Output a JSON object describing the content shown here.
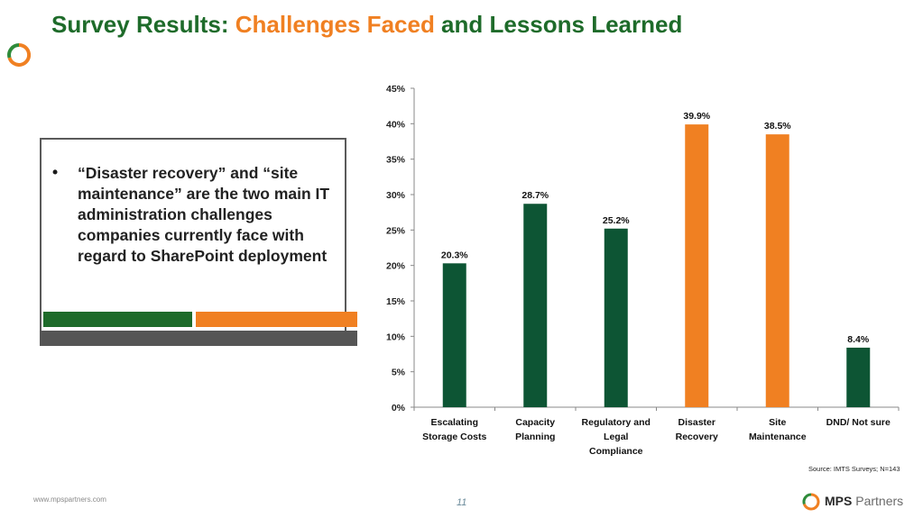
{
  "title": {
    "part1": "Survey Results: ",
    "part2": "Challenges Faced",
    "part3": " and Lessons Learned"
  },
  "bullet": {
    "marker": "•",
    "text": "“Disaster recovery” and “site maintenance” are the two main IT administration challenges companies currently face with regard to SharePoint deployment"
  },
  "chart_data": {
    "type": "bar",
    "categories": [
      [
        "Escalating",
        "Storage Costs"
      ],
      [
        "Capacity",
        "Planning"
      ],
      [
        "Regulatory and",
        "Legal",
        "Compliance"
      ],
      [
        "Disaster",
        "Recovery"
      ],
      [
        "Site",
        "Maintenance"
      ],
      [
        "DND/ Not sure"
      ]
    ],
    "values": [
      20.3,
      28.7,
      25.2,
      39.9,
      38.5,
      8.4
    ],
    "value_labels": [
      "20.3%",
      "28.7%",
      "25.2%",
      "39.9%",
      "38.5%",
      "8.4%"
    ],
    "bar_colors": [
      "#0d5534",
      "#0d5534",
      "#0d5534",
      "#f08022",
      "#f08022",
      "#0d5534"
    ],
    "ylim": [
      0,
      45
    ],
    "yticks": [
      "0%",
      "5%",
      "10%",
      "15%",
      "20%",
      "25%",
      "30%",
      "35%",
      "40%",
      "45%"
    ],
    "grid": false
  },
  "source": "Source: IMTS Surveys; N=143",
  "footer": {
    "url": "www.mpspartners.com",
    "page": "11",
    "brand_bold": "MPS",
    "brand_rest": " Partners"
  },
  "colors": {
    "title_green": "#1e6b2a",
    "accent_orange": "#f08022",
    "bar_green": "#0d5534"
  }
}
